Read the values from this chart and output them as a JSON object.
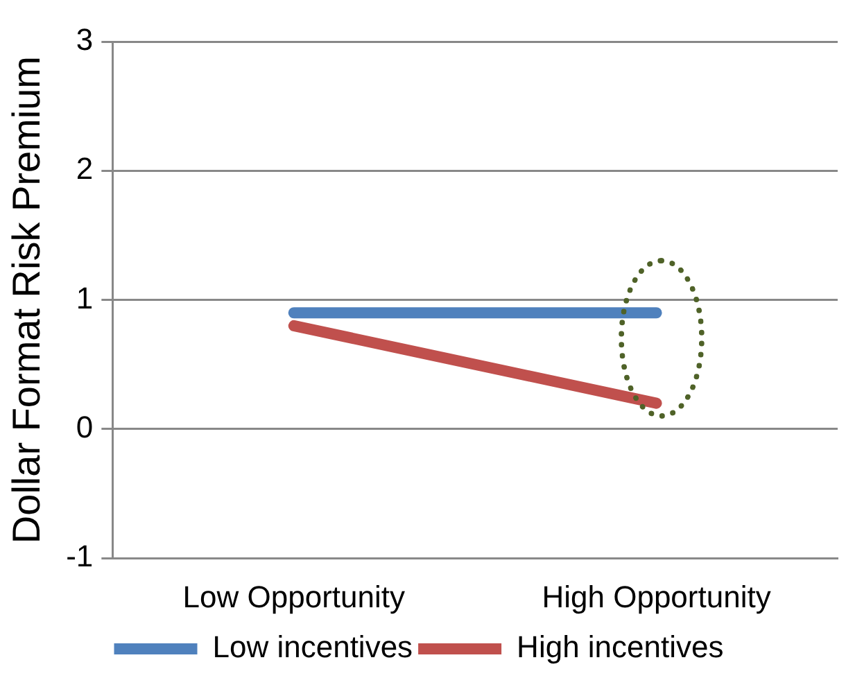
{
  "chart_data": {
    "type": "line",
    "ylabel": "Dollar Format Risk Premium",
    "categories": [
      "Low Opportunity",
      "High Opportunity"
    ],
    "series": [
      {
        "name": "Low incentives",
        "color": "#4f81bd",
        "values": [
          0.9,
          0.9
        ]
      },
      {
        "name": "High incentives",
        "color": "#c0504d",
        "values": [
          0.8,
          0.2
        ]
      }
    ],
    "ylim": [
      -1,
      3
    ],
    "yticks": [
      -1,
      0,
      1,
      2,
      3
    ],
    "grid": "y",
    "legend": "bottom"
  }
}
